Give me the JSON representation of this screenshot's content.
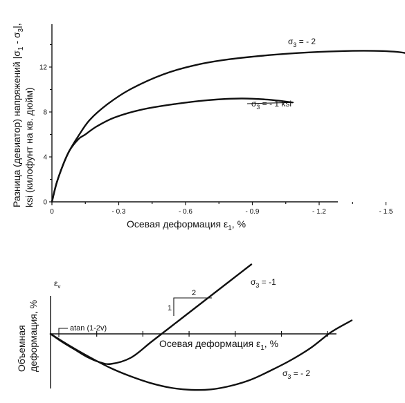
{
  "chart_data": [
    {
      "type": "line",
      "ylabel": "Разница (девиатор) напряжений |σ1 - σ3|, ksi (килофунт на кв. дюйм)",
      "ylabel_line1": "Разница (девиатор) напряжений |σ",
      "ylabel_line2": "ksi (килофунт на кв. дюйм)",
      "xlabel": "Осевая деформация  ε",
      "xlabel_sub": "1",
      "xlabel_suffix": ", %",
      "x_ticks": [
        {
          "v": 0,
          "label": "0"
        },
        {
          "v": -0.3,
          "label": "- 0.3"
        },
        {
          "v": -0.6,
          "label": "- 0.6"
        },
        {
          "v": -0.9,
          "label": "- 0.9"
        },
        {
          "v": -1.2,
          "label": "- 1.2"
        },
        {
          "v": -1.5,
          "label": "- 1.5"
        }
      ],
      "y_ticks": [
        {
          "v": 0,
          "label": "0"
        },
        {
          "v": 4,
          "label": "4"
        },
        {
          "v": 8,
          "label": "8"
        },
        {
          "v": 12,
          "label": "12"
        }
      ],
      "xlim": [
        0,
        -1.65
      ],
      "ylim": [
        0,
        16
      ],
      "series": [
        {
          "name": "σ3 = -2",
          "x": [
            0,
            -0.02,
            -0.05,
            -0.08,
            -0.12,
            -0.17,
            -0.25,
            -0.35,
            -0.5,
            -0.65,
            -0.8,
            -1.0,
            -1.2,
            -1.4,
            -1.55,
            -1.65
          ],
          "y": [
            0,
            1.6,
            3.3,
            4.6,
            5.9,
            7.3,
            8.7,
            10.0,
            11.35,
            12.2,
            12.7,
            13.1,
            13.35,
            13.45,
            13.35,
            13.0
          ]
        },
        {
          "name": "σ3 = -1 ksi",
          "x": [
            0,
            -0.02,
            -0.05,
            -0.08,
            -0.12,
            -0.15,
            -0.2,
            -0.28,
            -0.4,
            -0.55,
            -0.7,
            -0.85,
            -0.97,
            -1.08
          ],
          "y": [
            0,
            1.6,
            3.3,
            4.6,
            5.6,
            6.0,
            6.7,
            7.5,
            8.2,
            8.7,
            9.05,
            9.2,
            9.1,
            8.85
          ]
        }
      ],
      "labels": {
        "s2_base": "σ",
        "s2_sub": "3",
        "s2_rest": " = - 2",
        "s1_base": "σ",
        "s1_sub": "3",
        "s1_rest": " = - 1 ksi"
      }
    },
    {
      "type": "line",
      "ylabel_line1": "Объемная",
      "ylabel_line2": "деформация, %",
      "y_axis_symbol": "ε",
      "y_axis_symbol_sub": "v",
      "xlabel": "Осевая деформация   ε",
      "xlabel_sub": "1",
      "xlabel_suffix": ", %",
      "series": [
        {
          "name": "σ3 = -1",
          "x": [
            0,
            0.3,
            0.6,
            0.9,
            1.2,
            1.5,
            2.0,
            2.5,
            3.0,
            3.5,
            4.0,
            4.5,
            5.0
          ],
          "y": [
            0,
            -0.8,
            -1.5,
            -2.2,
            -2.7,
            -2.9,
            -2.3,
            -0.8,
            0.7,
            2.2,
            3.7,
            5.2,
            6.7
          ]
        },
        {
          "name": "σ3 = -2",
          "x": [
            0,
            0.5,
            1.0,
            1.5,
            2.0,
            2.5,
            3.0,
            3.5,
            4.0,
            4.5,
            5.0,
            5.5,
            6.0,
            6.5,
            7.0,
            7.5
          ],
          "y": [
            0,
            -1.2,
            -2.3,
            -3.3,
            -4.1,
            -4.75,
            -5.2,
            -5.4,
            -5.35,
            -5.0,
            -4.4,
            -3.5,
            -2.5,
            -1.3,
            0.2,
            1.3
          ]
        }
      ],
      "annotations": {
        "atan": "atan  (1-2v)",
        "slope_rise": "1",
        "slope_run": "2",
        "s1_base": "σ",
        "s1_sub": "3",
        "s1_rest": " = -1",
        "s2_base": "σ",
        "s2_sub": "3",
        "s2_rest": " = - 2"
      }
    }
  ]
}
